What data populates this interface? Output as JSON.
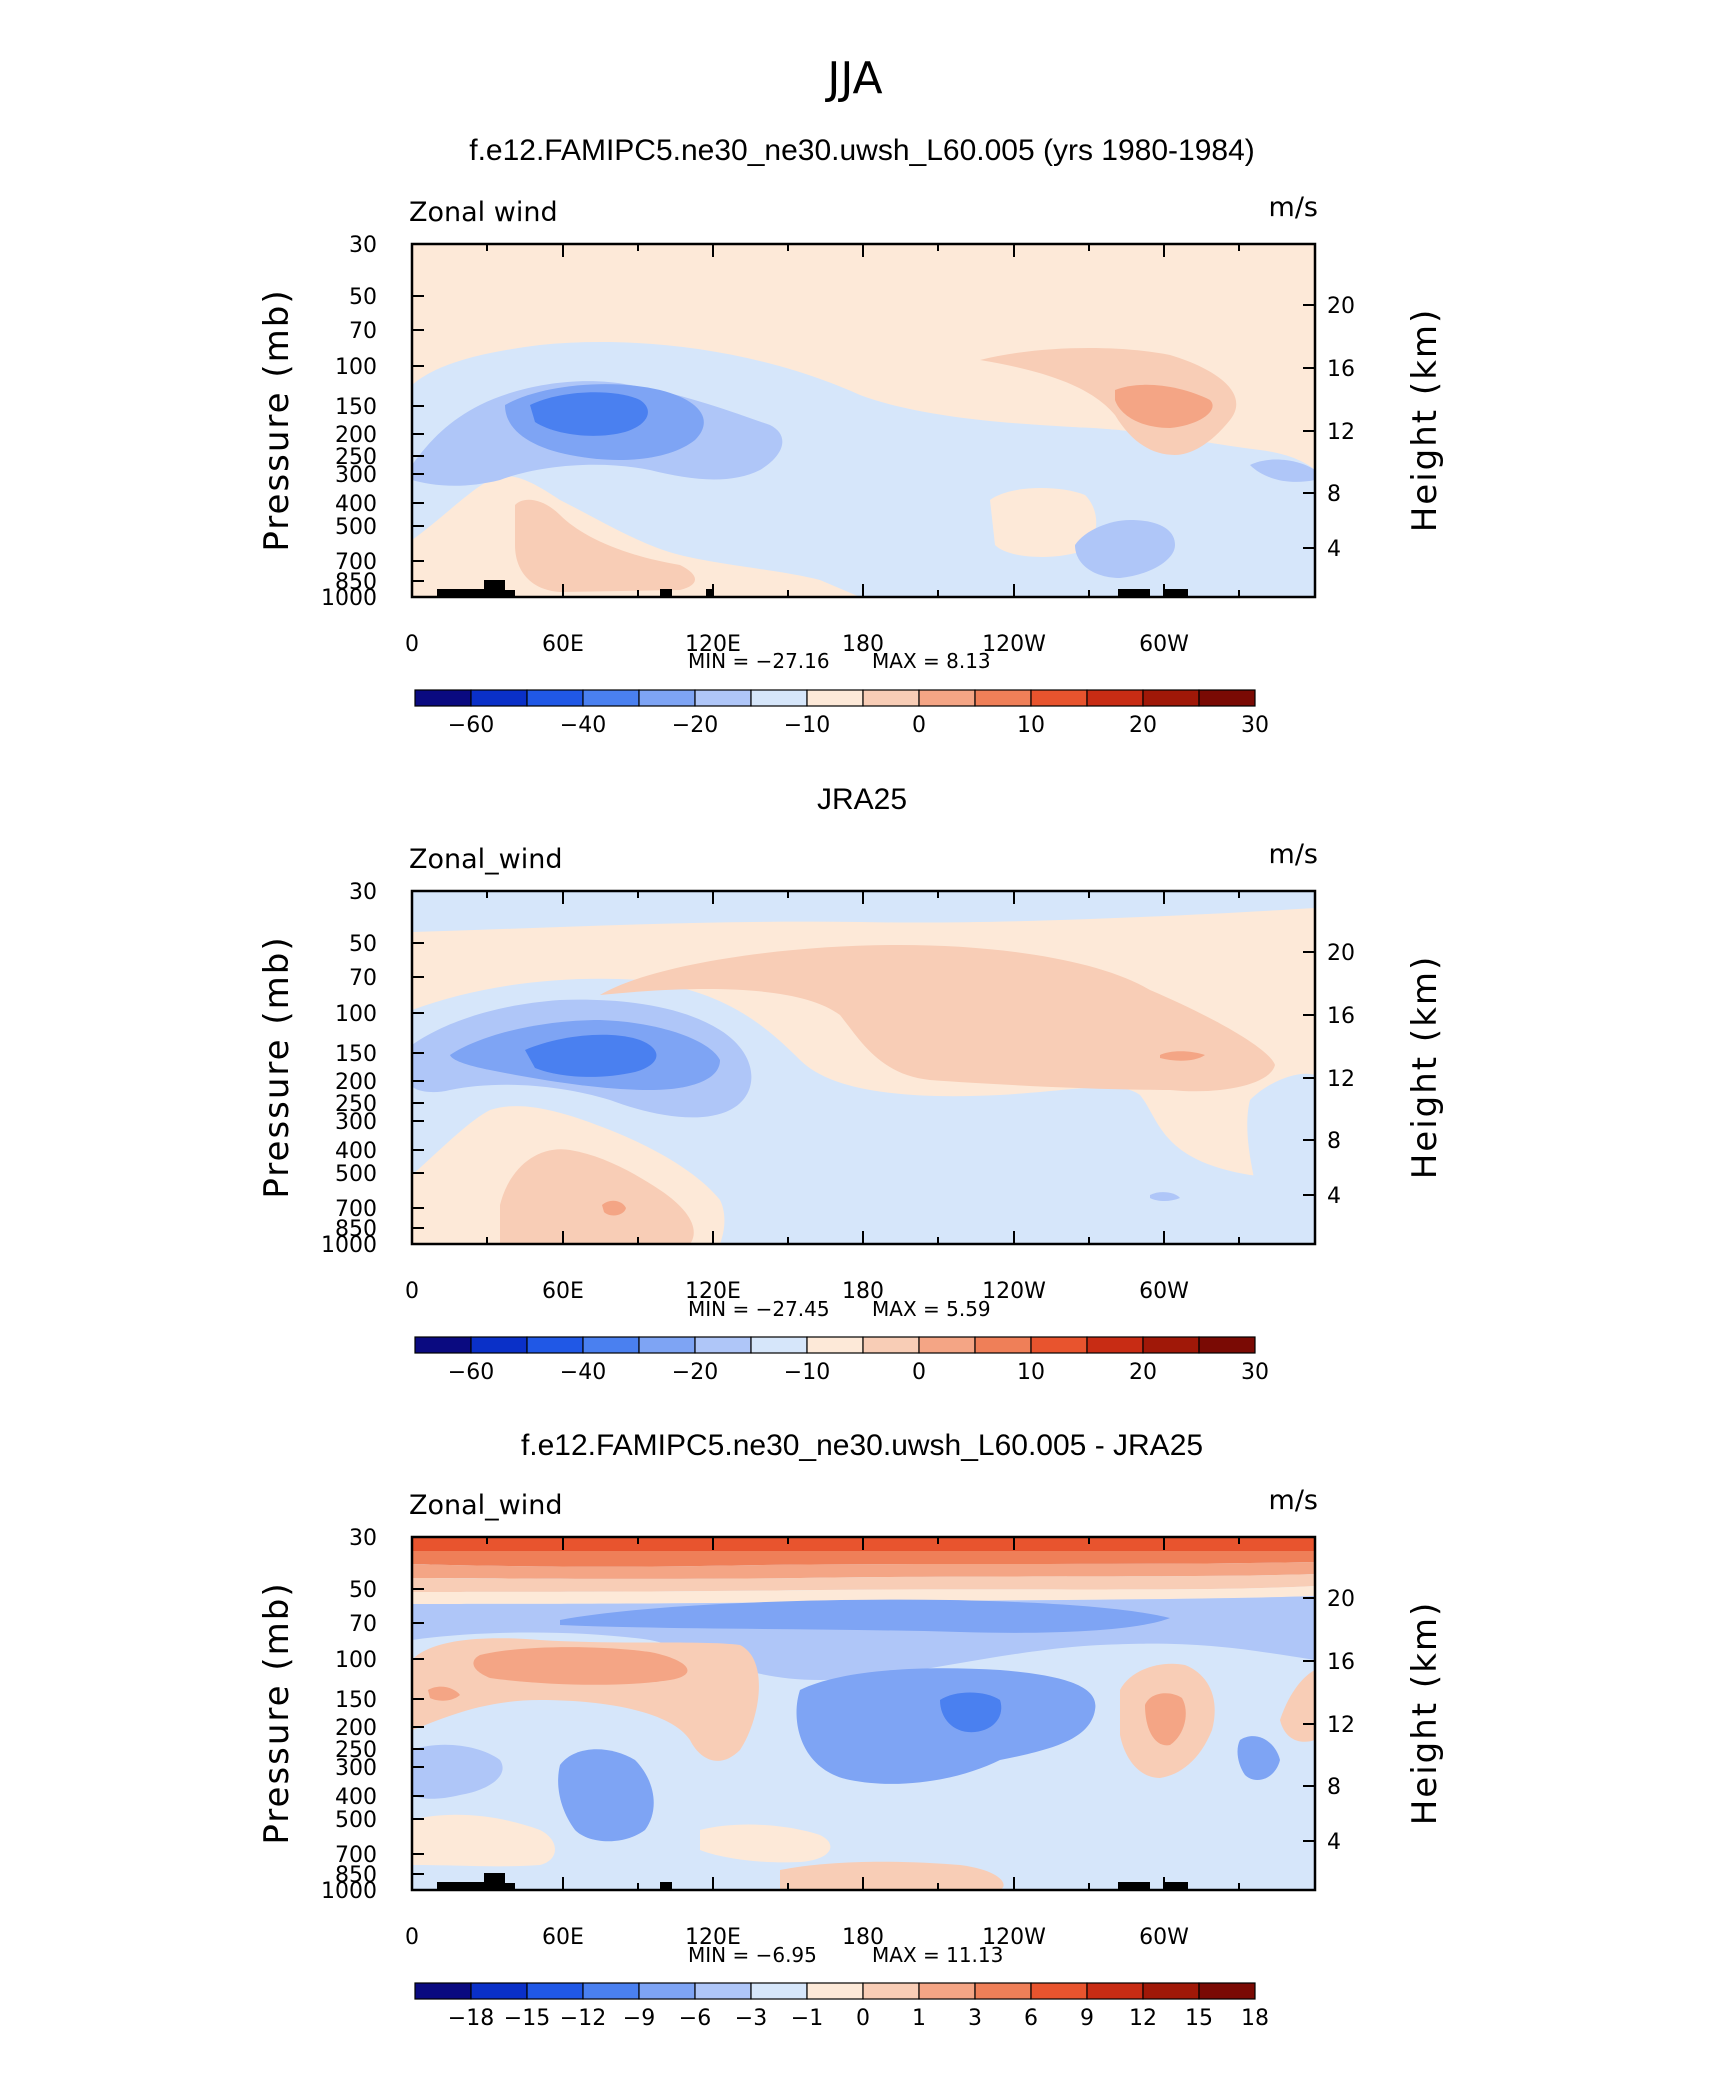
{
  "figure_title": "JJA",
  "chart_data": [
    {
      "type": "contour",
      "title": "f.e12.FAMIPC5.ne30_ne30.uwsh_L60.005 (yrs 1980-1984)",
      "variable": "Zonal wind",
      "units": "m/s",
      "xlabel": "",
      "ylabel": "Pressure (mb)",
      "ylabel_right": "Height (km)",
      "x_ticks": [
        "0",
        "60E",
        "120E",
        "180",
        "120W",
        "60W"
      ],
      "x_range": [
        0,
        360
      ],
      "y_ticks": [
        "30",
        "50",
        "70",
        "100",
        "150",
        "200",
        "250",
        "300",
        "400",
        "500",
        "700",
        "850",
        "1000"
      ],
      "y_range_mb": [
        1000,
        30
      ],
      "height_ticks": [
        "4",
        "8",
        "12",
        "16",
        "20"
      ],
      "min_label": "MIN = −27.16",
      "max_label": "MAX =    8.13",
      "min": -27.16,
      "max": 8.13,
      "colorbar_labels": [
        "−60",
        "−40",
        "−20",
        "−10",
        "0",
        "10",
        "20",
        "30"
      ],
      "features": [
        {
          "name": "jet core",
          "lon": 70,
          "pressure_mb": 150,
          "value": -27.16
        },
        {
          "name": "westerly max",
          "lon": 295,
          "pressure_mb": 150,
          "value": 8.13
        }
      ]
    },
    {
      "type": "contour",
      "title": "JRA25",
      "variable": "Zonal_wind",
      "units": "m/s",
      "xlabel": "",
      "ylabel": "Pressure (mb)",
      "ylabel_right": "Height (km)",
      "x_ticks": [
        "0",
        "60E",
        "120E",
        "180",
        "120W",
        "60W"
      ],
      "x_range": [
        0,
        360
      ],
      "y_ticks": [
        "30",
        "50",
        "70",
        "100",
        "150",
        "200",
        "250",
        "300",
        "400",
        "500",
        "700",
        "850",
        "1000"
      ],
      "y_range_mb": [
        1000,
        30
      ],
      "height_ticks": [
        "4",
        "8",
        "12",
        "16",
        "20"
      ],
      "min_label": "MIN = −27.45",
      "max_label": "MAX =    5.59",
      "min": -27.45,
      "max": 5.59,
      "colorbar_labels": [
        "−60",
        "−40",
        "−20",
        "−10",
        "0",
        "10",
        "20",
        "30"
      ],
      "features": [
        {
          "name": "jet core",
          "lon": 70,
          "pressure_mb": 150,
          "value": -27.45
        },
        {
          "name": "westerly max",
          "lon": 300,
          "pressure_mb": 150,
          "value": 5.59
        }
      ]
    },
    {
      "type": "contour",
      "title": "f.e12.FAMIPC5.ne30_ne30.uwsh_L60.005 - JRA25",
      "variable": "Zonal_wind",
      "units": "m/s",
      "xlabel": "",
      "ylabel": "Pressure (mb)",
      "ylabel_right": "Height (km)",
      "x_ticks": [
        "0",
        "60E",
        "120E",
        "180",
        "120W",
        "60W"
      ],
      "x_range": [
        0,
        360
      ],
      "y_ticks": [
        "30",
        "50",
        "70",
        "100",
        "150",
        "200",
        "250",
        "300",
        "400",
        "500",
        "700",
        "850",
        "1000"
      ],
      "y_range_mb": [
        1000,
        30
      ],
      "height_ticks": [
        "4",
        "8",
        "12",
        "16",
        "20"
      ],
      "min_label": "MIN =   −6.95",
      "max_label": "MAX =   11.13",
      "min": -6.95,
      "max": 11.13,
      "colorbar_labels": [
        "−18",
        "−15",
        "−12",
        "−9",
        "−6",
        "−3",
        "−1",
        "0",
        "1",
        "3",
        "6",
        "9",
        "12",
        "15",
        "18"
      ],
      "features": [
        {
          "name": "top positive band",
          "lon": 180,
          "pressure_mb": 30,
          "value": 11.13
        },
        {
          "name": "negative core",
          "lon": 215,
          "pressure_mb": 170,
          "value": -6.95
        }
      ]
    }
  ],
  "palette": [
    "#0a0a80",
    "#0a30c8",
    "#2058e6",
    "#4a80f0",
    "#7ea4f4",
    "#afc6f8",
    "#d6e6fa",
    "#fde9d8",
    "#f8cdb6",
    "#f4a585",
    "#ef7f58",
    "#e8542e",
    "#c82c14",
    "#a01808",
    "#7a0a04"
  ],
  "topography_color": "#000000"
}
